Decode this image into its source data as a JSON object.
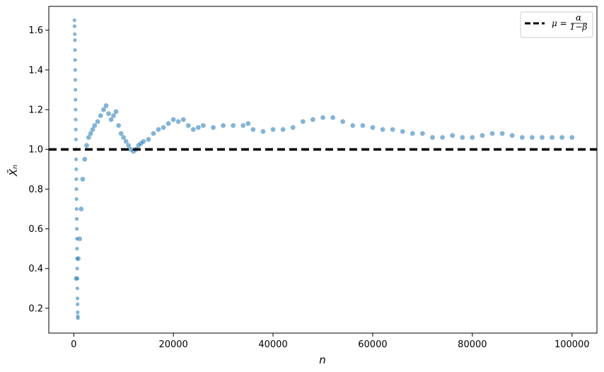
{
  "chart_data": {
    "type": "scatter",
    "title": "",
    "xlabel": "n",
    "ylabel": "X̄ₙ",
    "xlim": [
      -5000,
      105000
    ],
    "ylim": [
      0.075,
      1.72
    ],
    "xticks": [
      0,
      20000,
      40000,
      60000,
      80000,
      100000
    ],
    "yticks": [
      0.2,
      0.4,
      0.6,
      0.8,
      1.0,
      1.2,
      1.4,
      1.6
    ],
    "grid": false,
    "legend": {
      "position": "top-right",
      "label": "μ = α/(1−β)",
      "label_parts": {
        "lhs": "μ =",
        "num": "α",
        "den": "1−β"
      }
    },
    "reference_line": {
      "y": 1.0,
      "style": "dashed",
      "color": "#000000",
      "label": "μ = α/(1−β)"
    },
    "series": [
      {
        "marker_color": "#1f77b4",
        "alpha": 0.55,
        "early_spike_points": [
          [
            150,
            1.65
          ],
          [
            180,
            1.62
          ],
          [
            210,
            1.58
          ],
          [
            240,
            1.55
          ],
          [
            260,
            1.5
          ],
          [
            280,
            1.45
          ],
          [
            300,
            1.4
          ],
          [
            320,
            1.35
          ],
          [
            340,
            1.3
          ],
          [
            360,
            1.25
          ],
          [
            380,
            1.2
          ],
          [
            400,
            1.15
          ],
          [
            420,
            1.1
          ],
          [
            440,
            1.05
          ],
          [
            460,
            1.0
          ],
          [
            480,
            0.95
          ],
          [
            500,
            0.9
          ],
          [
            520,
            0.85
          ],
          [
            540,
            0.8
          ],
          [
            560,
            0.75
          ],
          [
            580,
            0.7
          ],
          [
            600,
            0.65
          ],
          [
            620,
            0.6
          ],
          [
            640,
            0.55
          ],
          [
            660,
            0.5
          ],
          [
            680,
            0.45
          ],
          [
            700,
            0.4
          ],
          [
            720,
            0.35
          ],
          [
            740,
            0.3
          ],
          [
            760,
            0.25
          ],
          [
            780,
            0.22
          ],
          [
            800,
            0.18
          ],
          [
            820,
            0.16
          ],
          [
            840,
            0.15
          ]
        ],
        "path_points": [
          [
            500,
            0.35
          ],
          [
            900,
            0.45
          ],
          [
            1200,
            0.55
          ],
          [
            1500,
            0.7
          ],
          [
            1800,
            0.85
          ],
          [
            2200,
            0.95
          ],
          [
            2600,
            1.02
          ],
          [
            3000,
            1.06
          ],
          [
            3400,
            1.08
          ],
          [
            3800,
            1.1
          ],
          [
            4200,
            1.12
          ],
          [
            4800,
            1.14
          ],
          [
            5400,
            1.17
          ],
          [
            6000,
            1.2
          ],
          [
            6500,
            1.22
          ],
          [
            7000,
            1.18
          ],
          [
            7500,
            1.15
          ],
          [
            8000,
            1.17
          ],
          [
            8500,
            1.19
          ],
          [
            9000,
            1.12
          ],
          [
            9500,
            1.08
          ],
          [
            10000,
            1.06
          ],
          [
            10500,
            1.04
          ],
          [
            11000,
            1.02
          ],
          [
            11500,
            1.0
          ],
          [
            12000,
            0.99
          ],
          [
            12500,
            1.0
          ],
          [
            13000,
            1.02
          ],
          [
            13500,
            1.03
          ],
          [
            14000,
            1.04
          ],
          [
            15000,
            1.05
          ],
          [
            16000,
            1.08
          ],
          [
            17000,
            1.1
          ],
          [
            18000,
            1.11
          ],
          [
            19000,
            1.13
          ],
          [
            20000,
            1.15
          ],
          [
            21000,
            1.14
          ],
          [
            22000,
            1.15
          ],
          [
            23000,
            1.12
          ],
          [
            24000,
            1.1
          ],
          [
            25000,
            1.11
          ],
          [
            26000,
            1.12
          ],
          [
            28000,
            1.11
          ],
          [
            30000,
            1.12
          ],
          [
            32000,
            1.12
          ],
          [
            34000,
            1.12
          ],
          [
            35000,
            1.13
          ],
          [
            36000,
            1.1
          ],
          [
            38000,
            1.09
          ],
          [
            40000,
            1.1
          ],
          [
            42000,
            1.1
          ],
          [
            44000,
            1.11
          ],
          [
            46000,
            1.14
          ],
          [
            48000,
            1.15
          ],
          [
            50000,
            1.16
          ],
          [
            52000,
            1.16
          ],
          [
            54000,
            1.14
          ],
          [
            56000,
            1.12
          ],
          [
            58000,
            1.12
          ],
          [
            60000,
            1.11
          ],
          [
            62000,
            1.1
          ],
          [
            64000,
            1.1
          ],
          [
            66000,
            1.09
          ],
          [
            68000,
            1.08
          ],
          [
            70000,
            1.08
          ],
          [
            72000,
            1.06
          ],
          [
            74000,
            1.06
          ],
          [
            76000,
            1.07
          ],
          [
            78000,
            1.06
          ],
          [
            80000,
            1.06
          ],
          [
            82000,
            1.07
          ],
          [
            84000,
            1.08
          ],
          [
            86000,
            1.08
          ],
          [
            88000,
            1.07
          ],
          [
            90000,
            1.06
          ],
          [
            92000,
            1.06
          ],
          [
            94000,
            1.06
          ],
          [
            96000,
            1.06
          ],
          [
            98000,
            1.06
          ],
          [
            100000,
            1.06
          ]
        ]
      }
    ]
  }
}
